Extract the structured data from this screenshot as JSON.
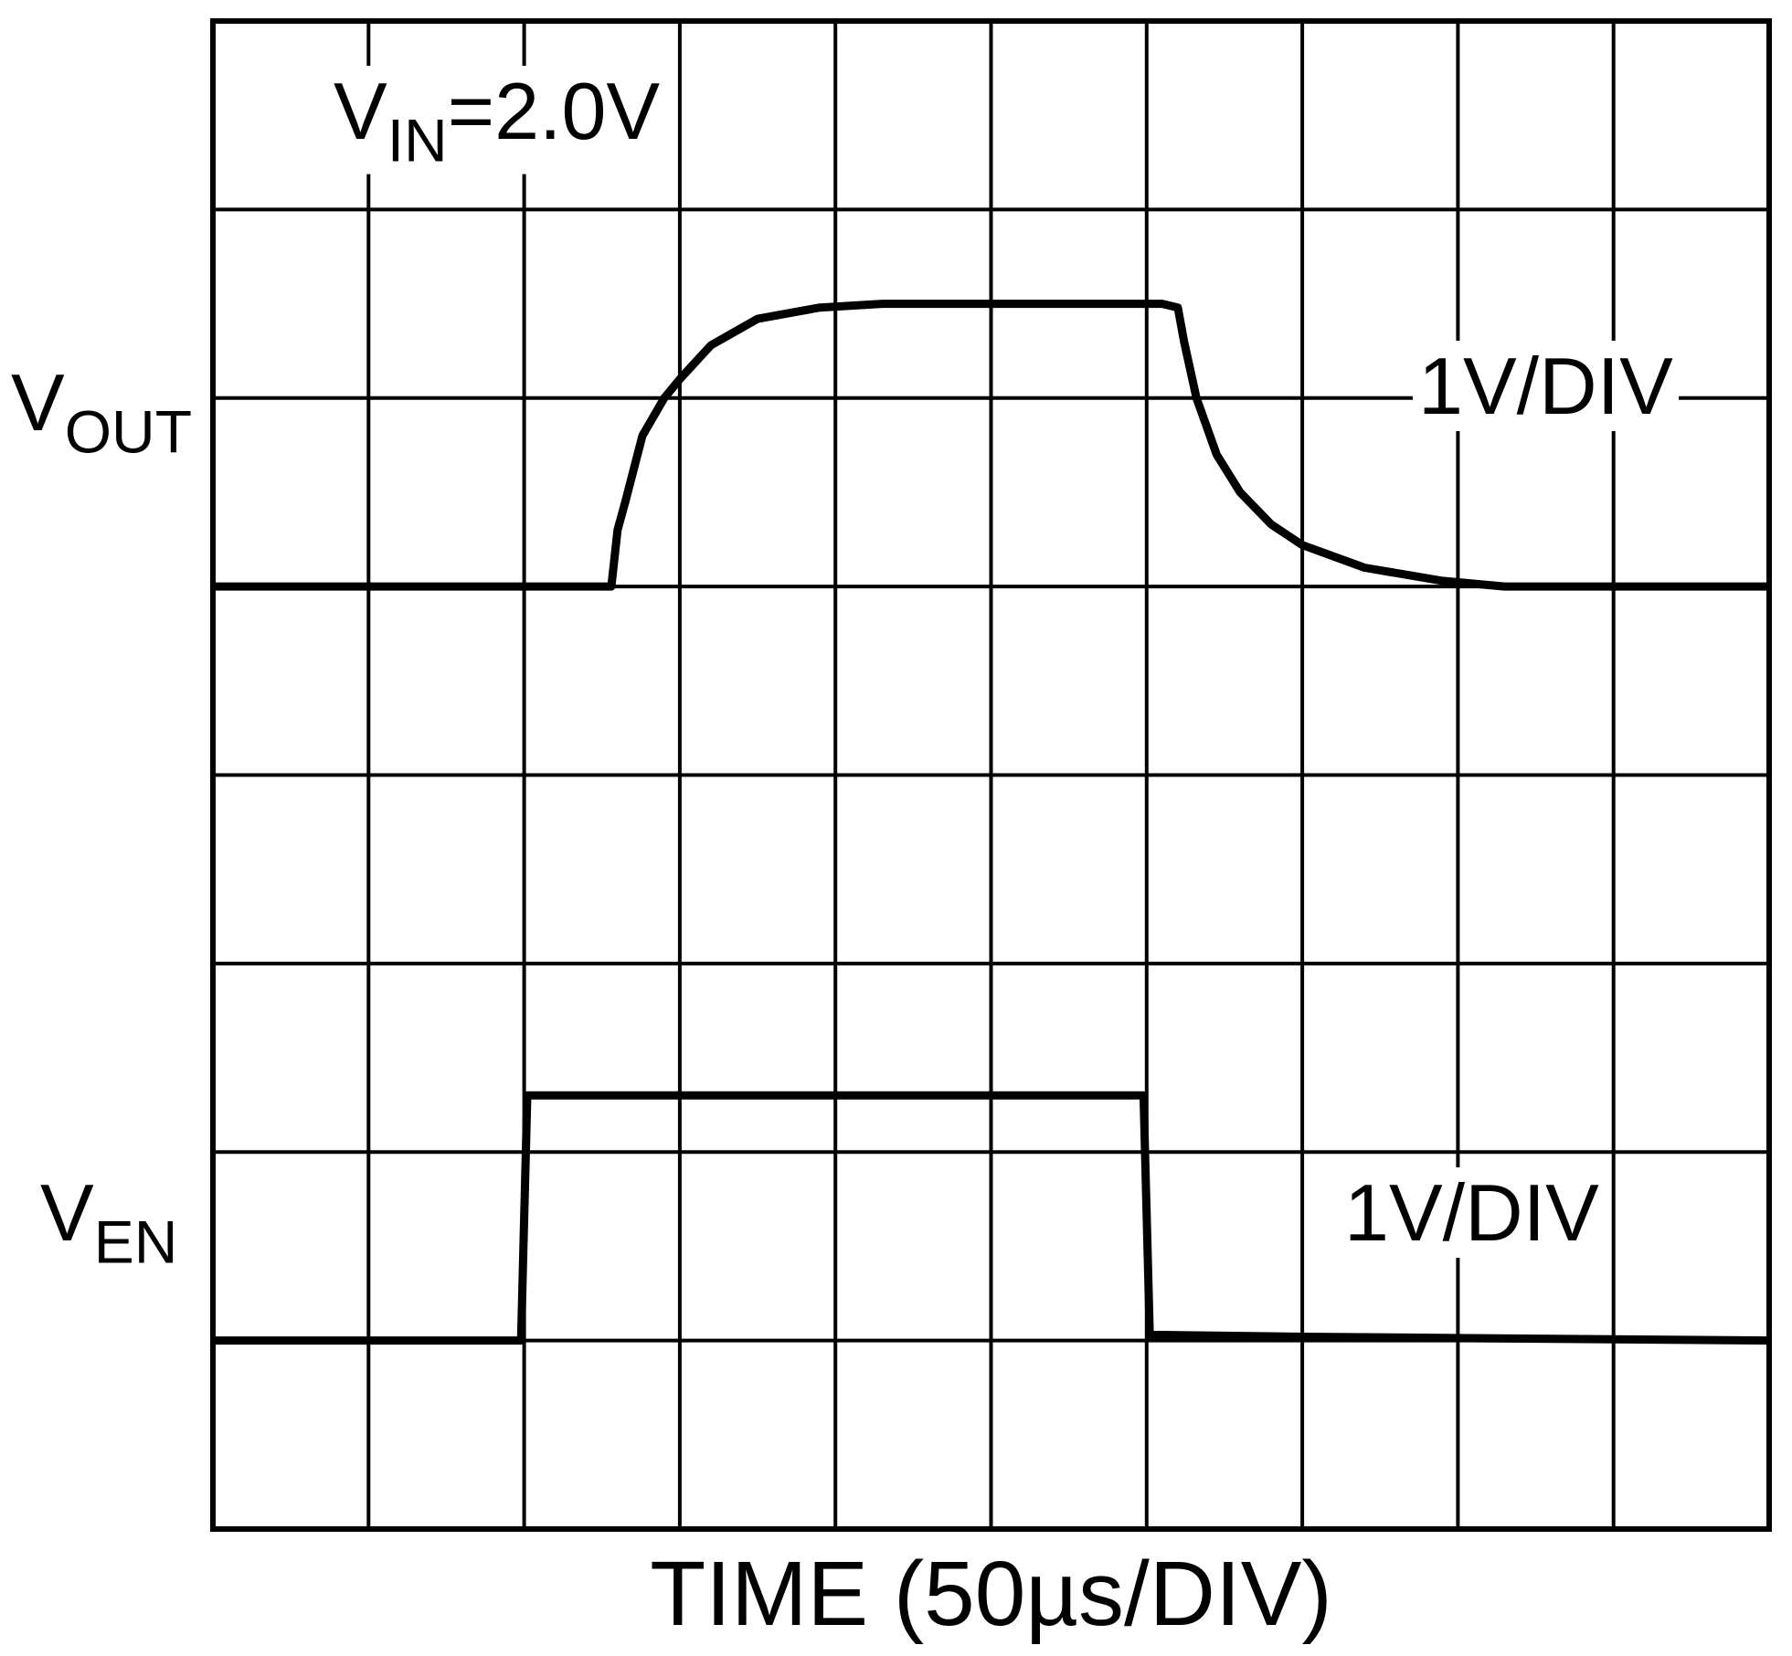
{
  "chart_data": {
    "type": "line",
    "x_label": "TIME (50µs/DIV)",
    "annotation": {
      "main": "V",
      "sub": "IN",
      "rest": "=2.0V"
    },
    "xlim": [
      0,
      10
    ],
    "ylim": [
      0,
      8
    ],
    "xticks": [
      0,
      1,
      2,
      3,
      4,
      5,
      6,
      7,
      8,
      9,
      10
    ],
    "yticks": [
      0,
      1,
      2,
      3,
      4,
      5,
      6,
      7,
      8
    ],
    "grid": true,
    "series": [
      {
        "label": "V",
        "label_sub": "OUT",
        "scale": "1V/DIV",
        "color": "#000000",
        "x": [
          0,
          2.56,
          2.6,
          2.65,
          2.76,
          2.9,
          3.0,
          3.2,
          3.5,
          3.9,
          4.3,
          6.1,
          6.2,
          6.24,
          6.32,
          6.45,
          6.6,
          6.8,
          7.0,
          7.4,
          7.9,
          8.3,
          10
        ],
        "values": [
          5,
          5,
          5.3,
          5.45,
          5.8,
          6.0,
          6.1,
          6.28,
          6.42,
          6.48,
          6.5,
          6.5,
          6.48,
          6.3,
          6.0,
          5.7,
          5.5,
          5.33,
          5.22,
          5.1,
          5.03,
          5.0,
          5.0
        ]
      },
      {
        "label": "V",
        "label_sub": "EN",
        "scale": "1V/DIV",
        "color": "#000000",
        "x": [
          0,
          1.98,
          2.02,
          5.98,
          6.02,
          7.0,
          10
        ],
        "values": [
          1,
          1,
          2.3,
          2.3,
          1.03,
          1.02,
          1
        ]
      }
    ]
  }
}
